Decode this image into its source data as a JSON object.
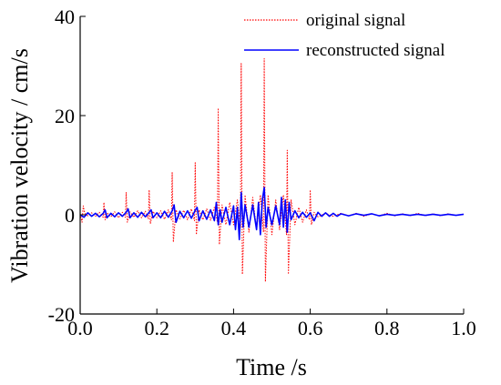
{
  "chart_data": {
    "type": "line",
    "title": "",
    "xlabel": "Time /s",
    "ylabel": "Vibration velocity / cm/s",
    "xlim": [
      0.0,
      1.0
    ],
    "ylim": [
      -20,
      40
    ],
    "x_ticks": [
      "0.0",
      "0.2",
      "0.4",
      "0.6",
      "0.8",
      "1.0"
    ],
    "y_ticks": [
      "-20",
      "0",
      "20",
      "40"
    ],
    "x_tick_values": [
      0.0,
      0.2,
      0.4,
      0.6,
      0.8,
      1.0
    ],
    "y_tick_values": [
      -20,
      0,
      20,
      40
    ],
    "grid": false,
    "legend_position": "top-right",
    "series": [
      {
        "name": "original signal",
        "color": "#ff0000",
        "style": "dotted",
        "x": [
          0.0,
          0.005,
          0.008,
          0.012,
          0.02,
          0.03,
          0.04,
          0.05,
          0.06,
          0.062,
          0.065,
          0.07,
          0.08,
          0.09,
          0.1,
          0.11,
          0.118,
          0.12,
          0.123,
          0.13,
          0.14,
          0.15,
          0.16,
          0.17,
          0.178,
          0.18,
          0.183,
          0.19,
          0.2,
          0.21,
          0.22,
          0.23,
          0.238,
          0.24,
          0.243,
          0.25,
          0.26,
          0.27,
          0.28,
          0.29,
          0.298,
          0.3,
          0.303,
          0.31,
          0.32,
          0.33,
          0.34,
          0.35,
          0.358,
          0.36,
          0.363,
          0.37,
          0.38,
          0.39,
          0.4,
          0.41,
          0.418,
          0.42,
          0.423,
          0.43,
          0.44,
          0.45,
          0.46,
          0.47,
          0.478,
          0.48,
          0.483,
          0.49,
          0.5,
          0.51,
          0.52,
          0.53,
          0.538,
          0.54,
          0.543,
          0.55,
          0.56,
          0.57,
          0.58,
          0.59,
          0.598,
          0.6,
          0.603,
          0.61,
          0.62,
          0.64,
          0.66,
          0.68,
          0.7,
          0.72,
          0.74,
          0.76,
          0.78,
          0.8,
          0.82,
          0.84,
          0.86,
          0.88,
          0.9,
          0.92,
          0.94,
          0.96,
          0.98,
          1.0
        ],
        "y": [
          0.2,
          -1.5,
          1.8,
          0.3,
          -0.2,
          0.4,
          -0.3,
          0.5,
          -0.5,
          2.5,
          -1.0,
          0.4,
          -0.4,
          0.6,
          -0.6,
          0.5,
          -0.5,
          4.5,
          -1.5,
          0.6,
          -0.5,
          0.8,
          -0.6,
          0.7,
          -0.8,
          5.0,
          -1.8,
          0.7,
          -0.6,
          0.8,
          -0.9,
          1.0,
          -1.0,
          8.5,
          -5.5,
          1.0,
          -0.8,
          0.9,
          -1.0,
          1.2,
          -1.2,
          10.5,
          -4.0,
          1.0,
          -1.0,
          1.2,
          -1.1,
          1.5,
          -1.5,
          21.5,
          -6.0,
          2.0,
          -2.0,
          2.5,
          -2.0,
          3.0,
          -2.5,
          30.5,
          -12.0,
          4.0,
          -3.5,
          3.5,
          -3.0,
          4.0,
          -3.5,
          31.5,
          -13.5,
          4.0,
          -4.0,
          3.0,
          -3.0,
          4.0,
          -4.0,
          13.0,
          -12.0,
          3.0,
          -2.0,
          1.5,
          -1.5,
          1.0,
          -1.0,
          5.0,
          -2.0,
          0.5,
          -0.4,
          0.3,
          -0.3,
          0.3,
          -0.2,
          0.3,
          -0.3,
          0.2,
          -0.2,
          0.3,
          -0.2,
          0.2,
          -0.2,
          0.3,
          -0.2,
          0.2,
          -0.2,
          0.2,
          -0.1,
          0.1
        ]
      },
      {
        "name": "reconstructed signal",
        "color": "#0000ff",
        "style": "solid",
        "x": [
          0.0,
          0.01,
          0.02,
          0.03,
          0.04,
          0.05,
          0.06,
          0.065,
          0.07,
          0.08,
          0.09,
          0.1,
          0.11,
          0.12,
          0.125,
          0.13,
          0.14,
          0.15,
          0.16,
          0.17,
          0.18,
          0.185,
          0.19,
          0.2,
          0.21,
          0.22,
          0.23,
          0.24,
          0.245,
          0.25,
          0.26,
          0.27,
          0.28,
          0.29,
          0.3,
          0.305,
          0.31,
          0.32,
          0.33,
          0.34,
          0.35,
          0.355,
          0.36,
          0.365,
          0.37,
          0.38,
          0.39,
          0.4,
          0.405,
          0.41,
          0.415,
          0.42,
          0.425,
          0.43,
          0.44,
          0.45,
          0.46,
          0.465,
          0.47,
          0.475,
          0.48,
          0.485,
          0.49,
          0.5,
          0.51,
          0.52,
          0.525,
          0.53,
          0.535,
          0.54,
          0.545,
          0.55,
          0.56,
          0.57,
          0.58,
          0.59,
          0.6,
          0.61,
          0.62,
          0.63,
          0.64,
          0.65,
          0.66,
          0.67,
          0.68,
          0.7,
          0.72,
          0.74,
          0.76,
          0.78,
          0.8,
          0.82,
          0.84,
          0.86,
          0.88,
          0.9,
          0.92,
          0.94,
          0.96,
          0.98,
          1.0
        ],
        "y": [
          0.0,
          -0.5,
          0.4,
          -0.3,
          0.3,
          -0.4,
          0.3,
          1.0,
          -0.6,
          0.3,
          -0.4,
          0.4,
          -0.3,
          0.5,
          1.2,
          -0.6,
          0.4,
          -0.5,
          0.5,
          -0.4,
          0.5,
          1.0,
          -0.6,
          0.4,
          -0.6,
          0.7,
          -0.5,
          0.8,
          2.0,
          -1.5,
          0.7,
          -0.6,
          0.8,
          -0.7,
          0.9,
          1.5,
          -1.2,
          0.8,
          -0.9,
          1.0,
          -1.2,
          2.5,
          -2.0,
          1.0,
          -1.5,
          1.5,
          -2.0,
          1.8,
          -3.0,
          1.5,
          -5.0,
          4.5,
          -2.5,
          2.0,
          -2.5,
          2.0,
          -3.0,
          2.5,
          -4.0,
          3.0,
          5.5,
          -2.5,
          1.5,
          -2.0,
          1.8,
          -2.0,
          3.5,
          -2.5,
          3.0,
          -3.5,
          2.5,
          -1.0,
          0.8,
          -0.6,
          0.5,
          -0.5,
          0.4,
          -1.2,
          0.5,
          -0.3,
          0.4,
          -0.3,
          0.3,
          -0.3,
          0.2,
          -0.2,
          0.2,
          -0.1,
          0.2,
          -0.2,
          0.1,
          -0.1,
          0.1,
          -0.1,
          0.1,
          -0.1,
          0.1,
          -0.1,
          0.1,
          -0.1,
          0.1
        ]
      }
    ]
  }
}
